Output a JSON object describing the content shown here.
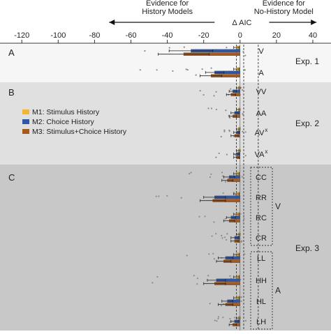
{
  "chart_data": {
    "type": "bar",
    "orientation": "horizontal",
    "xlabel": "Δ AIC",
    "xlim": [
      -132,
      50
    ],
    "xticks": [
      -120,
      -100,
      -80,
      -60,
      -40,
      -20,
      0,
      20,
      40
    ],
    "tick_labels": [
      "-120",
      "-100",
      "-80",
      "-60",
      "-40",
      "-20",
      "0",
      "20",
      "40"
    ],
    "header_left": "Evidence for History Models",
    "header_right": "Evidence for No-History Model",
    "header_left_lines": [
      "Evidence for",
      "History Models"
    ],
    "header_right_lines": [
      "Evidence for",
      "No-History Model"
    ],
    "reference_lines_x": [
      -2,
      2,
      10
    ],
    "legend": {
      "placement": "left, panel B",
      "entries": [
        {
          "label": "M1: Stimulus History",
          "color": "#f2b632"
        },
        {
          "label": "M2: Choice History",
          "color": "#2e57a6"
        },
        {
          "label": "M3: Stimulus+Choice History",
          "color": "#a8581b"
        }
      ]
    },
    "series_names": [
      "M1: Stimulus History",
      "M2: Choice History",
      "M3: Stimulus+Choice History"
    ],
    "series_colors": [
      "#f2b632",
      "#2e57a6",
      "#a8581b"
    ],
    "panels": [
      {
        "letter": "A",
        "experiment": "Exp. 1",
        "background": "#f6f6f6",
        "conditions": [
          {
            "label": "V",
            "values": [
              -2,
              -27,
              -31
            ],
            "err": [
              1.5,
              12,
              14
            ]
          },
          {
            "label": "A",
            "values": [
              -2,
              -14,
              -16
            ],
            "err": [
              1.5,
              5,
              6
            ]
          }
        ]
      },
      {
        "letter": "B",
        "experiment": "Exp. 2",
        "background": "#e0e0e0",
        "conditions": [
          {
            "label": "VV",
            "values": [
              -1,
              -4,
              -5
            ],
            "err": [
              1,
              2,
              2.5
            ]
          },
          {
            "label": "AA",
            "values": [
              -1,
              -3,
              -4
            ],
            "err": [
              1,
              2,
              2
            ]
          },
          {
            "label": "AV",
            "label_sup": "x",
            "values": [
              -1,
              -2,
              -3
            ],
            "err": [
              1,
              1.5,
              2
            ]
          },
          {
            "label": "VA",
            "label_sup": "x",
            "values": [
              -1,
              -2,
              -2
            ],
            "err": [
              1,
              1.5,
              1.5
            ]
          }
        ]
      },
      {
        "letter": "C",
        "experiment": "Exp. 3",
        "background": "#c8c8c8",
        "groups": [
          {
            "label": "V",
            "conditions": [
              "CC",
              "RR",
              "RC",
              "CR"
            ]
          },
          {
            "label": "A",
            "conditions": [
              "LL",
              "HH",
              "HL",
              "LH"
            ]
          }
        ],
        "conditions": [
          {
            "label": "CC",
            "values": [
              -2,
              -6,
              -7
            ],
            "err": [
              1.5,
              3,
              3
            ]
          },
          {
            "label": "RR",
            "values": [
              -2,
              -14,
              -15
            ],
            "err": [
              1.5,
              6,
              7
            ]
          },
          {
            "label": "RC",
            "values": [
              -2,
              -5,
              -6
            ],
            "err": [
              1.5,
              2.5,
              3
            ]
          },
          {
            "label": "CR",
            "values": [
              -1,
              -3,
              -3
            ],
            "err": [
              1,
              2,
              2
            ]
          },
          {
            "label": "LL",
            "values": [
              -2,
              -8,
              -9
            ],
            "err": [
              1.5,
              4,
              4
            ]
          },
          {
            "label": "HH",
            "values": [
              -2,
              -13,
              -14
            ],
            "err": [
              1.5,
              5,
              6
            ]
          },
          {
            "label": "HL",
            "values": [
              -2,
              -7,
              -8
            ],
            "err": [
              1.5,
              3,
              4
            ]
          },
          {
            "label": "LH",
            "values": [
              -1,
              -3,
              -4
            ],
            "err": [
              1,
              2,
              2
            ]
          }
        ]
      }
    ]
  }
}
